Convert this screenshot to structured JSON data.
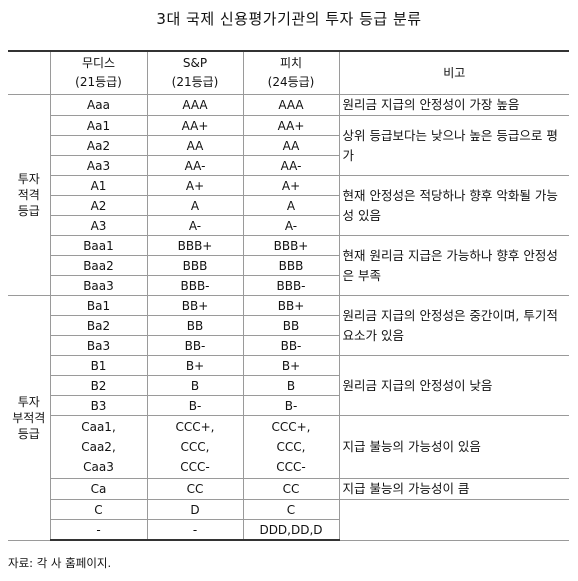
{
  "title": "3대 국제 신용평가기관의 투자 등급 분류",
  "header": {
    "moodys": [
      "무디스",
      "(21등급)"
    ],
    "sp": [
      "S&P",
      "(21등급)"
    ],
    "fitch": [
      "피치",
      "(24등급)"
    ],
    "note": "비고"
  },
  "categories": {
    "investment": [
      "투자",
      "적격",
      "등급"
    ],
    "speculative": [
      "투자",
      "부적격",
      "등급"
    ]
  },
  "rows": [
    {
      "moodys": "Aaa",
      "sp": "AAA",
      "fitch": "AAA"
    },
    {
      "moodys": "Aa1",
      "sp": "AA+",
      "fitch": "AA+"
    },
    {
      "moodys": "Aa2",
      "sp": "AA",
      "fitch": "AA"
    },
    {
      "moodys": "Aa3",
      "sp": "AA-",
      "fitch": "AA-"
    },
    {
      "moodys": "A1",
      "sp": "A+",
      "fitch": "A+"
    },
    {
      "moodys": "A2",
      "sp": "A",
      "fitch": "A"
    },
    {
      "moodys": "A3",
      "sp": "A-",
      "fitch": "A-"
    },
    {
      "moodys": "Baa1",
      "sp": "BBB+",
      "fitch": "BBB+"
    },
    {
      "moodys": "Baa2",
      "sp": "BBB",
      "fitch": "BBB"
    },
    {
      "moodys": "Baa3",
      "sp": "BBB-",
      "fitch": "BBB-"
    },
    {
      "moodys": "Ba1",
      "sp": "BB+",
      "fitch": "BB+"
    },
    {
      "moodys": "Ba2",
      "sp": "BB",
      "fitch": "BB"
    },
    {
      "moodys": "Ba3",
      "sp": "BB-",
      "fitch": "BB-"
    },
    {
      "moodys": "B1",
      "sp": "B+",
      "fitch": "B+"
    },
    {
      "moodys": "B2",
      "sp": "B",
      "fitch": "B"
    },
    {
      "moodys": "B3",
      "sp": "B-",
      "fitch": "B-"
    },
    {
      "moodys": [
        "Caa1,",
        "Caa2,",
        "Caa3"
      ],
      "sp": [
        "CCC+,",
        "CCC,",
        "CCC-"
      ],
      "fitch": [
        "CCC+,",
        "CCC,",
        "CCC-"
      ]
    },
    {
      "moodys": "Ca",
      "sp": "CC",
      "fitch": "CC"
    },
    {
      "moodys": "C",
      "sp": "D",
      "fitch": "C"
    },
    {
      "moodys": "-",
      "sp": "-",
      "fitch": "DDD,DD,D"
    }
  ],
  "notes": [
    "원리금 지급의 안정성이 가장 높음",
    "상위 등급보다는 낮으나 높은 등급으로 평가",
    "현재 안정성은 적당하나 향후 악화될 가능성 있음",
    "현재 원리금 지급은 가능하나 향후 안정성은 부족",
    "원리금 지급의 안정성은 중간이며, 투기적 요소가 있음",
    "원리금 지급의 안정성이 낮음",
    "지급 불능의 가능성이 있음",
    "지급 불능의 가능성이 큼"
  ],
  "source": "자료: 각 사 홈페이지."
}
